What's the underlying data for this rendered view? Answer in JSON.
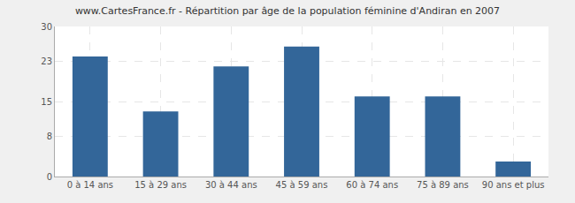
{
  "chart_data": {
    "type": "bar",
    "title": "www.CartesFrance.fr - Répartition par âge de la population féminine d'Andiran en 2007",
    "categories": [
      "0 à 14 ans",
      "15 à 29 ans",
      "30 à 44 ans",
      "45 à 59 ans",
      "60 à 74 ans",
      "75 à 89 ans",
      "90 ans et plus"
    ],
    "values": [
      24,
      13,
      22,
      26,
      16,
      16,
      3
    ],
    "color": "#336699",
    "ylim": [
      0,
      30
    ],
    "yticks": [
      0,
      8,
      15,
      23,
      30
    ],
    "grid": true
  }
}
